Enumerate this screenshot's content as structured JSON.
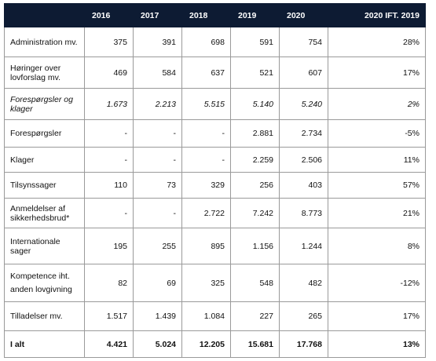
{
  "header": [
    "",
    "2016",
    "2017",
    "2018",
    "2019",
    "2020",
    "2020 IFT. 2019"
  ],
  "rows": [
    {
      "label": "Administration mv.",
      "values": [
        "375",
        "391",
        "698",
        "591",
        "754",
        "28%"
      ],
      "style": "normal"
    },
    {
      "label": "Høringer over lovforslag mv.",
      "values": [
        "469",
        "584",
        "637",
        "521",
        "607",
        "17%"
      ],
      "style": "normal"
    },
    {
      "label": "Forespørgsler og klager",
      "values": [
        "1.673",
        "2.213",
        "5.515",
        "5.140",
        "5.240",
        "2%"
      ],
      "style": "italic"
    },
    {
      "label": "Forespørgsler",
      "values": [
        "-",
        "-",
        "-",
        "2.881",
        "2.734",
        "-5%"
      ],
      "style": "normal"
    },
    {
      "label": "Klager",
      "values": [
        "-",
        "-",
        "-",
        "2.259",
        "2.506",
        "11%"
      ],
      "style": "normal"
    },
    {
      "label": "Tilsynssager",
      "values": [
        "110",
        "73",
        "329",
        "256",
        "403",
        "57%"
      ],
      "style": "normal"
    },
    {
      "label": "Anmeldelser af sikkerhedsbrud*",
      "values": [
        "-",
        "-",
        "2.722",
        "7.242",
        "8.773",
        "21%"
      ],
      "style": "normal"
    },
    {
      "label": "Internationale sager",
      "values": [
        "195",
        "255",
        "895",
        "1.156",
        "1.244",
        "8%"
      ],
      "style": "normal"
    },
    {
      "label": "Kompetence iht. anden lovgivning",
      "values": [
        "82",
        "69",
        "325",
        "548",
        "482",
        "-12%"
      ],
      "style": "normal"
    },
    {
      "label": "Tilladelser mv.",
      "values": [
        "1.517",
        "1.439",
        "1.084",
        "227",
        "265",
        "17%"
      ],
      "style": "normal"
    },
    {
      "label": "I alt",
      "values": [
        "4.421",
        "5.024",
        "12.205",
        "15.681",
        "17.768",
        "13%"
      ],
      "style": "total"
    }
  ]
}
